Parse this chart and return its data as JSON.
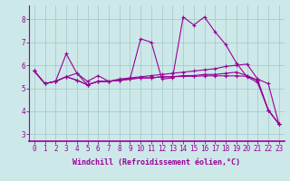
{
  "bg_color": "#cde8e8",
  "line_color": "#990099",
  "grid_color": "#aacccc",
  "xlabel": "Windchill (Refroidissement éolien,°C)",
  "xlabel_fontsize": 6.0,
  "tick_fontsize": 5.5,
  "yticks": [
    3,
    4,
    5,
    6,
    7,
    8
  ],
  "xticks": [
    0,
    1,
    2,
    3,
    4,
    5,
    6,
    7,
    8,
    9,
    10,
    11,
    12,
    13,
    14,
    15,
    16,
    17,
    18,
    19,
    20,
    21,
    22,
    23
  ],
  "xlim": [
    -0.5,
    23.5
  ],
  "ylim": [
    2.7,
    8.6
  ],
  "series": [
    [
      5.75,
      5.2,
      5.3,
      6.5,
      5.65,
      5.15,
      5.3,
      5.3,
      5.35,
      5.4,
      7.15,
      7.0,
      5.4,
      5.45,
      8.1,
      7.75,
      8.1,
      7.45,
      6.9,
      6.1,
      5.5,
      5.25,
      4.05,
      3.45
    ],
    [
      5.75,
      5.2,
      5.3,
      5.5,
      5.65,
      5.3,
      5.55,
      5.3,
      5.4,
      5.45,
      5.5,
      5.55,
      5.6,
      5.65,
      5.7,
      5.75,
      5.8,
      5.85,
      5.95,
      6.0,
      6.05,
      5.4,
      5.2,
      3.45
    ],
    [
      5.75,
      5.2,
      5.3,
      5.5,
      5.35,
      5.15,
      5.3,
      5.3,
      5.35,
      5.4,
      5.45,
      5.45,
      5.5,
      5.5,
      5.55,
      5.55,
      5.6,
      5.6,
      5.65,
      5.7,
      5.55,
      5.35,
      4.05,
      3.45
    ],
    [
      5.75,
      5.2,
      5.3,
      5.5,
      5.35,
      5.15,
      5.3,
      5.3,
      5.35,
      5.4,
      5.45,
      5.45,
      5.5,
      5.5,
      5.52,
      5.52,
      5.54,
      5.54,
      5.54,
      5.54,
      5.52,
      5.35,
      4.05,
      3.45
    ]
  ]
}
